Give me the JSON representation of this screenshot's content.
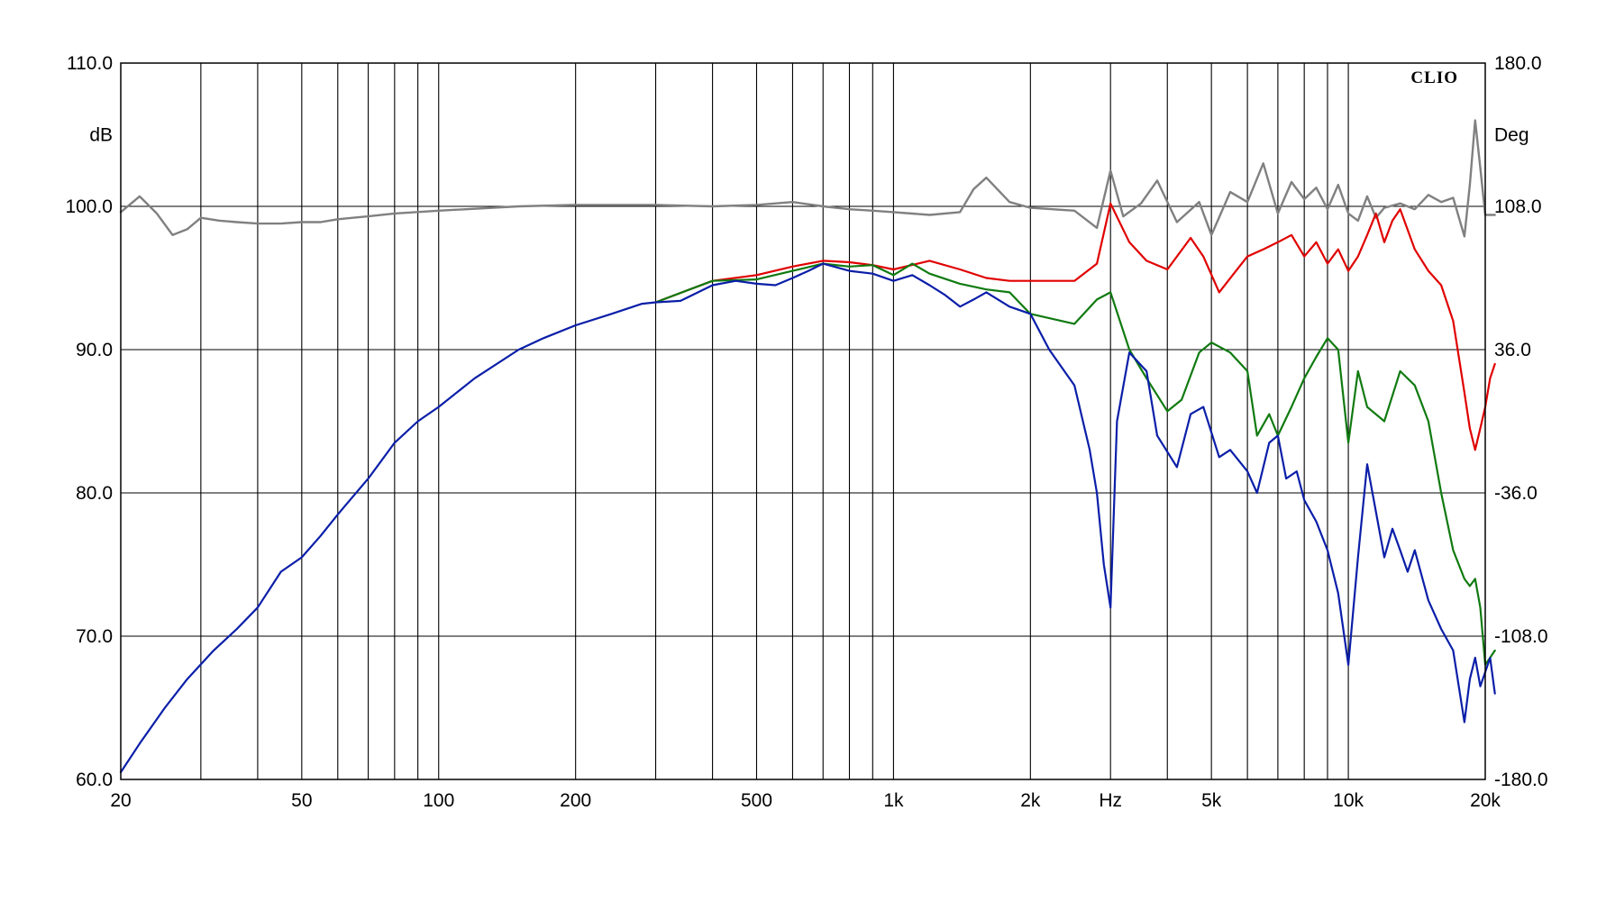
{
  "chart_data": {
    "type": "line",
    "brand": "CLIO",
    "xlabel": "Hz",
    "ylabel_left": "dB",
    "ylabel_right": "Deg",
    "x_scale": "log",
    "xlim": [
      20,
      20000
    ],
    "ylim_left": [
      60,
      110
    ],
    "ylim_right": [
      -180,
      180
    ],
    "grid": true,
    "x_ticks": [
      {
        "value": 20,
        "label": "20"
      },
      {
        "value": 50,
        "label": "50"
      },
      {
        "value": 100,
        "label": "100"
      },
      {
        "value": 200,
        "label": "200"
      },
      {
        "value": 500,
        "label": "500"
      },
      {
        "value": 1000,
        "label": "1k"
      },
      {
        "value": 2000,
        "label": "2k"
      },
      {
        "value": 5000,
        "label": "5k"
      },
      {
        "value": 10000,
        "label": "10k"
      },
      {
        "value": 20000,
        "label": "20k"
      }
    ],
    "y_ticks_left": [
      "110.0",
      "100.0",
      "90.0",
      "80.0",
      "70.0",
      "60.0"
    ],
    "y_ticks_right": [
      "180.0",
      "108.0",
      "36.0",
      "-36.0",
      "-108.0",
      "-180.0"
    ],
    "series": [
      {
        "color": "#808080",
        "x": [
          20,
          22,
          24,
          26,
          28,
          30,
          33,
          36,
          40,
          45,
          50,
          55,
          60,
          70,
          80,
          100,
          150,
          200,
          300,
          400,
          500,
          600,
          700,
          800,
          900,
          1000,
          1200,
          1400,
          1500,
          1600,
          1800,
          2000,
          2500,
          2800,
          3000,
          3200,
          3500,
          3800,
          4200,
          4700,
          5000,
          5500,
          6000,
          6500,
          7000,
          7500,
          8000,
          8500,
          9000,
          9500,
          10000,
          10500,
          11000,
          11500,
          12000,
          13000,
          14000,
          15000,
          16000,
          17000,
          18000,
          18500,
          19000,
          19500,
          20000,
          21000
        ],
        "values": [
          99.6,
          100.7,
          99.5,
          98.0,
          98.4,
          99.2,
          99.0,
          98.9,
          98.8,
          98.8,
          98.9,
          98.9,
          99.1,
          99.3,
          99.5,
          99.7,
          100.0,
          100.1,
          100.1,
          100.0,
          100.1,
          100.3,
          100.0,
          99.8,
          99.7,
          99.6,
          99.4,
          99.6,
          101.2,
          102.0,
          100.3,
          99.9,
          99.7,
          98.5,
          102.5,
          99.3,
          100.2,
          101.8,
          98.9,
          100.3,
          98.0,
          101.0,
          100.3,
          103.0,
          99.5,
          101.7,
          100.5,
          101.3,
          99.8,
          101.5,
          99.5,
          99.0,
          100.7,
          99.2,
          99.9,
          100.2,
          99.8,
          100.8,
          100.3,
          100.6,
          97.9,
          101.5,
          106.0,
          102.7,
          99.4,
          99.4
        ]
      },
      {
        "color": "#e00000",
        "x": [
          300,
          400,
          500,
          600,
          700,
          800,
          900,
          1000,
          1200,
          1400,
          1600,
          1800,
          2000,
          2500,
          2800,
          3000,
          3300,
          3600,
          4000,
          4500,
          4800,
          5200,
          5600,
          6000,
          6500,
          7000,
          7500,
          8000,
          8500,
          9000,
          9500,
          10000,
          10500,
          11000,
          11500,
          12000,
          12500,
          13000,
          14000,
          15000,
          16000,
          17000,
          18000,
          18500,
          19000,
          19500,
          20000,
          20500,
          21000
        ],
        "values": [
          93.3,
          94.8,
          95.2,
          95.8,
          96.2,
          96.1,
          95.9,
          95.6,
          96.2,
          95.6,
          95.0,
          94.8,
          94.8,
          94.8,
          96.0,
          100.2,
          97.5,
          96.2,
          95.6,
          97.8,
          96.5,
          94.0,
          95.3,
          96.5,
          97.0,
          97.5,
          98.0,
          96.5,
          97.5,
          96.0,
          97.0,
          95.5,
          96.5,
          98.0,
          99.5,
          97.5,
          99.0,
          99.8,
          97.0,
          95.5,
          94.5,
          92.0,
          87.0,
          84.5,
          83.0,
          84.5,
          86.0,
          88.0,
          89.0
        ]
      },
      {
        "color": "#107a10",
        "x": [
          300,
          400,
          500,
          600,
          700,
          800,
          900,
          1000,
          1100,
          1200,
          1400,
          1600,
          1800,
          2000,
          2500,
          2800,
          3000,
          3300,
          3600,
          4000,
          4300,
          4700,
          5000,
          5500,
          6000,
          6300,
          6700,
          7000,
          7500,
          8000,
          8500,
          9000,
          9500,
          10000,
          10500,
          11000,
          12000,
          13000,
          14000,
          15000,
          16000,
          17000,
          18000,
          18500,
          19000,
          19500,
          20000,
          20500,
          21000
        ],
        "values": [
          93.3,
          94.8,
          94.9,
          95.5,
          96.0,
          95.8,
          95.9,
          95.2,
          96.0,
          95.3,
          94.6,
          94.2,
          94.0,
          92.5,
          91.8,
          93.5,
          94.0,
          90.0,
          88.0,
          85.7,
          86.5,
          89.8,
          90.5,
          89.8,
          88.5,
          84.0,
          85.5,
          84.0,
          86.0,
          88.0,
          89.5,
          90.8,
          90.0,
          83.5,
          88.5,
          86.0,
          85.0,
          88.5,
          87.5,
          85.0,
          80.0,
          76.0,
          74.0,
          73.5,
          74.0,
          72.0,
          68.0,
          68.5,
          69.0
        ]
      },
      {
        "color": "#0a1ea8",
        "x": [
          20,
          22,
          25,
          28,
          32,
          36,
          40,
          45,
          50,
          55,
          60,
          70,
          80,
          90,
          100,
          120,
          150,
          170,
          200,
          240,
          280,
          300,
          340,
          400,
          450,
          500,
          550,
          600,
          650,
          700,
          800,
          900,
          1000,
          1100,
          1200,
          1300,
          1400,
          1500,
          1600,
          1800,
          2000,
          2200,
          2500,
          2700,
          2800,
          2900,
          3000,
          3100,
          3300,
          3600,
          3800,
          4200,
          4500,
          4800,
          5200,
          5500,
          6000,
          6300,
          6700,
          7000,
          7300,
          7700,
          8000,
          8500,
          9000,
          9500,
          10000,
          10500,
          11000,
          12000,
          12500,
          13000,
          13500,
          14000,
          15000,
          16000,
          17000,
          18000,
          18500,
          19000,
          19500,
          20000,
          20500,
          21000
        ],
        "values": [
          60.5,
          62.5,
          65.0,
          67.0,
          69.0,
          70.5,
          72.0,
          74.5,
          75.5,
          77.0,
          78.5,
          81.0,
          83.5,
          85.0,
          86.0,
          88.0,
          90.0,
          90.8,
          91.7,
          92.5,
          93.2,
          93.3,
          93.4,
          94.5,
          94.8,
          94.6,
          94.5,
          95.0,
          95.5,
          96.0,
          95.5,
          95.3,
          94.8,
          95.2,
          94.5,
          93.8,
          93.0,
          93.5,
          94.0,
          93.0,
          92.5,
          90.0,
          87.5,
          83.0,
          80.0,
          75.0,
          72.0,
          85.0,
          89.8,
          88.5,
          84.0,
          81.8,
          85.5,
          86.0,
          82.5,
          83.0,
          81.5,
          80.0,
          83.5,
          84.0,
          81.0,
          81.5,
          79.5,
          78.0,
          76.0,
          73.0,
          68.0,
          75.5,
          82.0,
          75.5,
          77.5,
          76.0,
          74.5,
          76.0,
          72.5,
          70.5,
          69.0,
          64.0,
          67.0,
          68.5,
          66.5,
          67.5,
          68.5,
          66.0
        ]
      }
    ]
  }
}
